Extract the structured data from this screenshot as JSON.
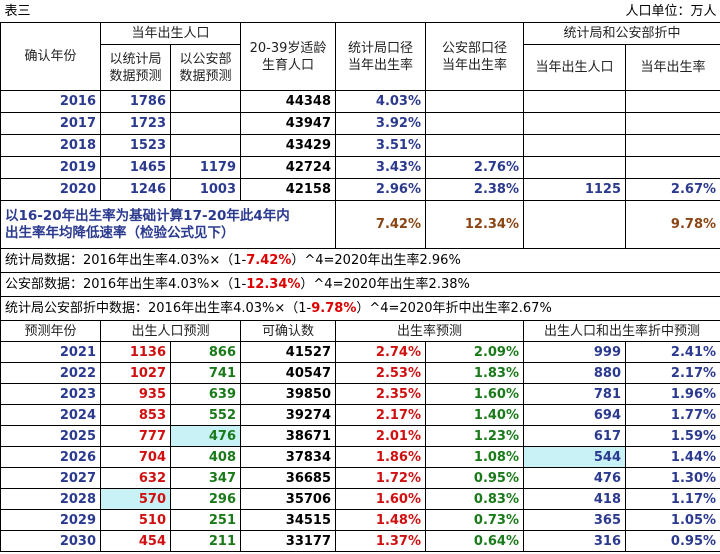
{
  "title": "表三",
  "unit": "人口单位：万人",
  "header": {
    "confirm_year": "确认年份",
    "births": "当年出生人口",
    "nbs_forecast": "以统计局\n数据预测",
    "mps_forecast": "以公安部\n数据预测",
    "women": "20-39岁适龄\n生育人口",
    "nbs_rate": "统计局口径\n当年出生率",
    "mps_rate": "公安部口径\n当年出生率",
    "compromise": "统计局和公安部折中",
    "c_births": "当年出生人口",
    "c_rate": "当年出生率"
  },
  "rows": [
    [
      "2016",
      "1786",
      null,
      "44348",
      "4.03%",
      null,
      null,
      null
    ],
    [
      "2017",
      "1723",
      null,
      "43947",
      "3.92%",
      null,
      null,
      null
    ],
    [
      "2018",
      "1523",
      null,
      "43429",
      "3.51%",
      null,
      null,
      null
    ],
    [
      "2019",
      "1465",
      "1179",
      "42724",
      "3.43%",
      "2.76%",
      null,
      null
    ],
    [
      "2020",
      "1246",
      "1003",
      "42158",
      "2.96%",
      "2.38%",
      "1125",
      "2.67%"
    ]
  ],
  "decline": {
    "label": "以16-20年出生率为基础计算17-20年此4年内\n出生率年均降低速率（检验公式见下）",
    "nbs": "7.42%",
    "mps": "12.34%",
    "compromise": "9.78%"
  },
  "formulas": [
    [
      "统计局数据：2016年出生率4.03%×（1-",
      "7.42%",
      "）^4=2020年出生率2.96%"
    ],
    [
      "公安部数据：2016年出生率4.03%×（1-",
      "12.34%",
      "）^4=2020年出生率2.38%"
    ],
    [
      "统计局公安部折中数据：2016年出生率4.03%×（1-",
      "9.78%",
      "）^4=2020年折中出生率2.67%"
    ]
  ],
  "forecast_header": [
    "预测年份",
    "出生人口预测",
    "可确认数",
    "出生率预测",
    "出生人口和出生率折中预测"
  ],
  "forecast": [
    [
      "2021",
      "1136",
      "866",
      "41527",
      "2.74%",
      "2.09%",
      "999",
      "2.41%"
    ],
    [
      "2022",
      "1027",
      "741",
      "40547",
      "2.53%",
      "1.83%",
      "880",
      "2.17%"
    ],
    [
      "2023",
      "935",
      "639",
      "39850",
      "2.35%",
      "1.60%",
      "781",
      "1.96%"
    ],
    [
      "2024",
      "853",
      "552",
      "39274",
      "2.17%",
      "1.40%",
      "694",
      "1.77%"
    ],
    [
      "2025",
      "777",
      "476",
      "38671",
      "2.01%",
      "1.23%",
      "617",
      "1.59%"
    ],
    [
      "2026",
      "704",
      "408",
      "37834",
      "1.86%",
      "1.08%",
      "544",
      "1.44%"
    ],
    [
      "2027",
      "632",
      "347",
      "36685",
      "1.72%",
      "0.95%",
      "476",
      "1.30%"
    ],
    [
      "2028",
      "570",
      "296",
      "35706",
      "1.60%",
      "0.83%",
      "418",
      "1.17%"
    ],
    [
      "2029",
      "510",
      "251",
      "34515",
      "1.48%",
      "0.73%",
      "365",
      "1.05%"
    ],
    [
      "2030",
      "454",
      "211",
      "33177",
      "1.37%",
      "0.64%",
      "316",
      "0.95%"
    ]
  ]
}
